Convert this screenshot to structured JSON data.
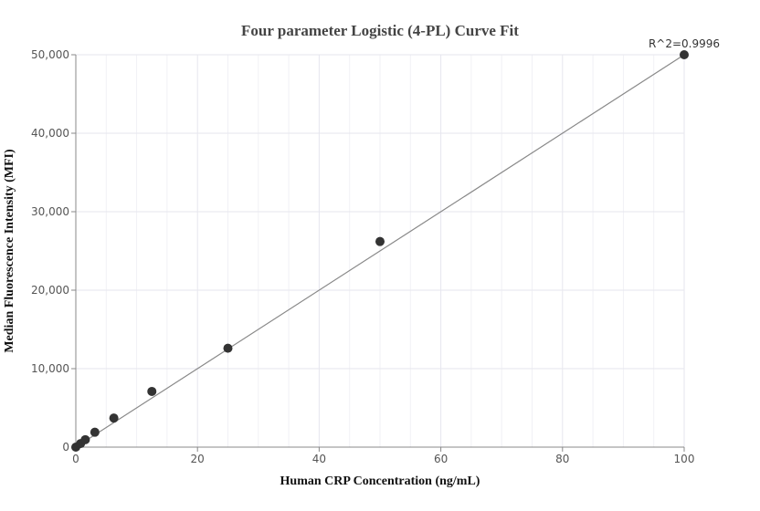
{
  "chart_data": {
    "type": "scatter",
    "title": "Four parameter Logistic (4-PL) Curve Fit",
    "xlabel": "Human CRP Concentration (ng/mL)",
    "ylabel": "Median Fluorescence Intensity (MFI)",
    "xlim": [
      0,
      100
    ],
    "ylim": [
      0,
      50000
    ],
    "x_ticks": [
      0,
      20,
      40,
      60,
      80,
      100
    ],
    "x_tick_labels": [
      "0",
      "20",
      "40",
      "60",
      "80",
      "100"
    ],
    "y_ticks": [
      0,
      10000,
      20000,
      30000,
      40000,
      50000
    ],
    "y_tick_labels": [
      "0",
      "10,000",
      "20,000",
      "30,000",
      "40,000",
      "50,000"
    ],
    "grid": true,
    "series": [
      {
        "points": [
          {
            "x": 0,
            "y": 0
          },
          {
            "x": 0.78,
            "y": 450
          },
          {
            "x": 1.56,
            "y": 950
          },
          {
            "x": 3.13,
            "y": 1900
          },
          {
            "x": 6.25,
            "y": 3700
          },
          {
            "x": 12.5,
            "y": 7100
          },
          {
            "x": 25,
            "y": 12600
          },
          {
            "x": 50,
            "y": 26200
          },
          {
            "x": 100,
            "y": 50000
          }
        ]
      }
    ],
    "fit_curve": [
      {
        "x": 0,
        "y": 0
      },
      {
        "x": 100,
        "y": 50000
      }
    ],
    "annotation": "R^2=0.9996",
    "colors": {
      "points": "#333333",
      "fit_line": "#888888",
      "grid": "#e6e6ee"
    }
  }
}
